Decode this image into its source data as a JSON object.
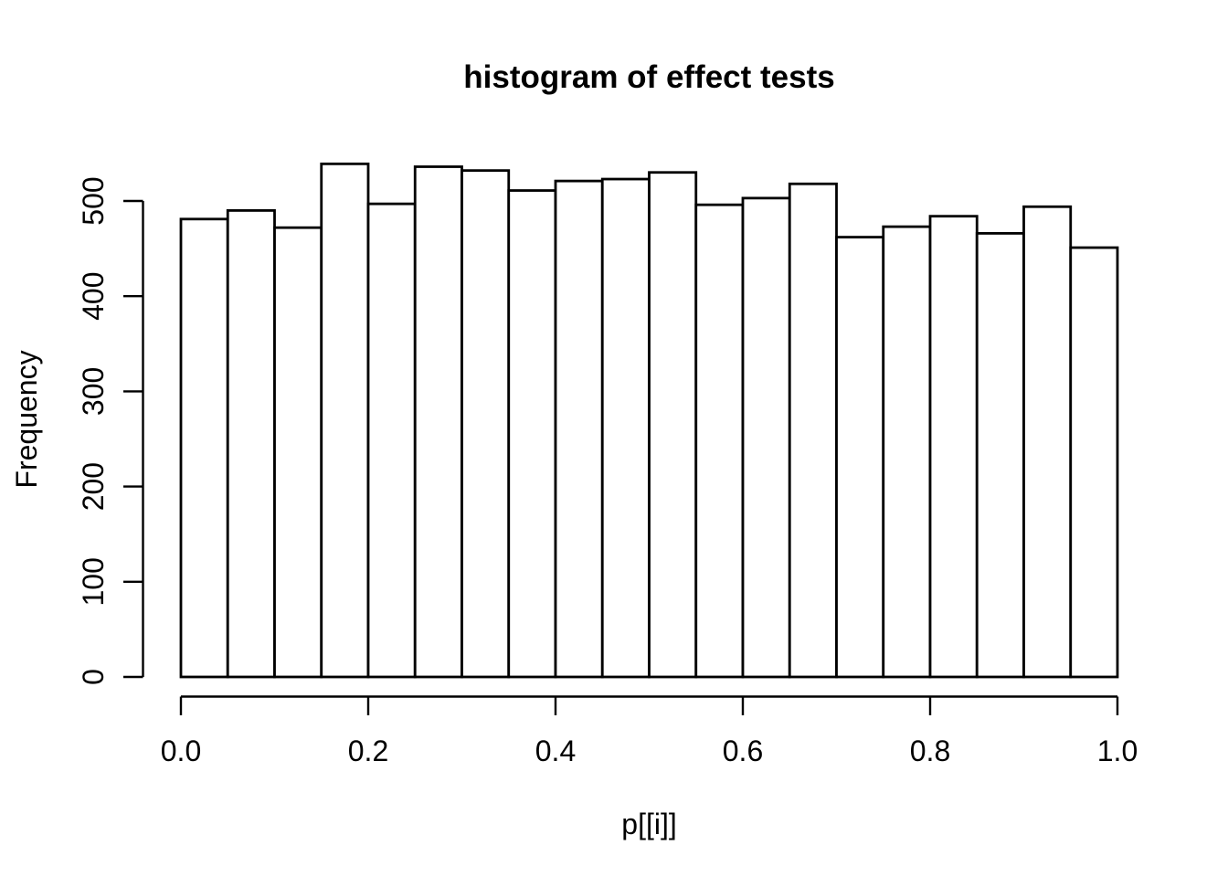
{
  "title": "histogram of effect tests",
  "xlabel": "p[[i]]",
  "ylabel": "Frequency",
  "axes": {
    "x_tick_labels": [
      "0.0",
      "0.2",
      "0.4",
      "0.6",
      "0.8",
      "1.0"
    ],
    "x_tick_values": [
      0,
      0.2,
      0.4,
      0.6,
      0.8,
      1.0
    ],
    "y_tick_labels": [
      "0",
      "100",
      "200",
      "300",
      "400",
      "500"
    ],
    "y_tick_values": [
      0,
      100,
      200,
      300,
      400,
      500
    ]
  },
  "colors": {
    "background": "#ffffff",
    "bar_fill": "#ffffff",
    "bar_border": "#000000",
    "axis": "#000000",
    "text": "#000000"
  },
  "chart_data": {
    "type": "bar",
    "subtype": "histogram",
    "title": "histogram of effect tests",
    "xlabel": "p[[i]]",
    "ylabel": "Frequency",
    "xlim": [
      0,
      1
    ],
    "ylim": [
      0,
      500
    ],
    "grid": false,
    "legend": false,
    "bin_width": 0.05,
    "bin_edges": [
      0,
      0.05,
      0.1,
      0.15,
      0.2,
      0.25,
      0.3,
      0.35,
      0.4,
      0.45,
      0.5,
      0.55,
      0.6,
      0.65,
      0.7,
      0.75,
      0.8,
      0.85,
      0.9,
      0.95,
      1.0
    ],
    "values": [
      481,
      490,
      472,
      539,
      497,
      536,
      532,
      511,
      521,
      523,
      530,
      496,
      503,
      518,
      462,
      473,
      484,
      466,
      494,
      451
    ]
  }
}
